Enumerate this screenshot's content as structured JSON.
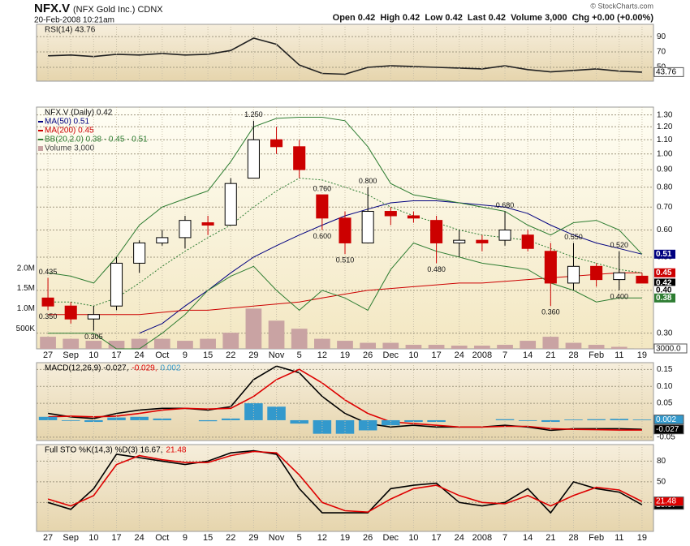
{
  "header": {
    "symbol": "NFX.V",
    "name": "(NFX Gold Inc.) CDNX",
    "datetime": "20-Feb-2008 10:21am",
    "quote": "Open 0.42  High 0.42  Low 0.42  Last 0.42  Volume 3,000  Chg +0.00 (+0.00%)",
    "copyright": "© StockCharts.com"
  },
  "chart_data": [
    {
      "type": "line",
      "title": "RSI(14) 43.76",
      "ylim": [
        32,
        106
      ],
      "yticks": [
        90,
        70,
        50
      ],
      "grid": true,
      "series": [
        {
          "name": null,
          "color": "#222222",
          "values": [
            65,
            66,
            64,
            67,
            66,
            68,
            66,
            67,
            72,
            88,
            80,
            53,
            42,
            41,
            50,
            52,
            51,
            50,
            49,
            48,
            52,
            47,
            44,
            46,
            48,
            45,
            43.76
          ],
          "value_labels": [
            null,
            null,
            null,
            null,
            null,
            null,
            null,
            null,
            null,
            null,
            null,
            null,
            null,
            null,
            null,
            null,
            null,
            null,
            null,
            null,
            null,
            null,
            null,
            null,
            null,
            null,
            "43.76"
          ],
          "tag_color": "#ffffff"
        }
      ]
    },
    {
      "type": "candlestick",
      "title": "NFX.V (Daily) 0.42",
      "log_scale": true,
      "grid": true,
      "categories": [
        "27",
        "Sep",
        "10",
        "17",
        "24",
        "Oct",
        "9",
        "15",
        "22",
        "29",
        "Nov",
        "5",
        "12",
        "19",
        "26",
        "Dec",
        "10",
        "17",
        "24",
        "2008",
        "7",
        "14",
        "21",
        "28",
        "Feb",
        "11",
        "19"
      ],
      "ylim": [
        0.27,
        1.37
      ],
      "yticks": [
        {
          "value": 0.3,
          "label": "0.30"
        },
        {
          "value": 0.4,
          "label": "0.40"
        },
        {
          "value": 0.5,
          "label": "0.50"
        },
        {
          "value": 0.6,
          "label": "0.60"
        },
        {
          "value": 0.7,
          "label": "0.70"
        },
        {
          "value": 0.8,
          "label": "0.80"
        },
        {
          "value": 0.9,
          "label": "0.90"
        },
        {
          "value": 1.0,
          "label": "1.00"
        },
        {
          "value": 1.1,
          "label": "1.10"
        },
        {
          "value": 1.2,
          "label": "1.20"
        },
        {
          "value": 1.3,
          "label": "1.30"
        }
      ],
      "up_color": "#000000",
      "down_color": "#cc0000",
      "open": [
        0.38,
        0.36,
        0.33,
        0.36,
        0.48,
        0.55,
        0.57,
        0.63,
        0.62,
        0.85,
        1.1,
        1.05,
        0.76,
        0.65,
        0.55,
        0.68,
        0.66,
        0.64,
        0.55,
        0.56,
        0.56,
        0.58,
        0.52,
        0.42,
        0.47,
        0.43,
        0.44
      ],
      "high": [
        0.435,
        0.37,
        0.36,
        0.5,
        0.56,
        0.6,
        0.66,
        0.66,
        0.85,
        1.25,
        1.2,
        1.1,
        0.76,
        0.68,
        0.8,
        0.7,
        0.68,
        0.66,
        0.6,
        0.58,
        0.68,
        0.6,
        0.55,
        0.55,
        0.48,
        0.52,
        0.45
      ],
      "low": [
        0.35,
        0.32,
        0.305,
        0.35,
        0.45,
        0.54,
        0.53,
        0.58,
        0.62,
        0.85,
        1.0,
        0.85,
        0.6,
        0.51,
        0.55,
        0.62,
        0.63,
        0.48,
        0.5,
        0.52,
        0.54,
        0.52,
        0.36,
        0.4,
        0.41,
        0.4,
        0.42
      ],
      "close": [
        0.36,
        0.33,
        0.34,
        0.48,
        0.55,
        0.57,
        0.64,
        0.62,
        0.82,
        1.1,
        1.05,
        0.9,
        0.65,
        0.55,
        0.68,
        0.66,
        0.65,
        0.55,
        0.56,
        0.55,
        0.6,
        0.53,
        0.42,
        0.47,
        0.43,
        0.45,
        0.42
      ],
      "high_labels": [
        "0.435",
        null,
        null,
        null,
        null,
        null,
        null,
        null,
        null,
        "1.250",
        null,
        null,
        "0.760",
        null,
        "0.800",
        null,
        null,
        null,
        null,
        null,
        "0.680",
        null,
        null,
        "0.550",
        null,
        "0.520",
        null
      ],
      "low_labels": [
        "0.350",
        null,
        "0.305",
        null,
        null,
        null,
        null,
        null,
        null,
        null,
        null,
        null,
        "0.600",
        "0.510",
        null,
        null,
        null,
        "0.480",
        null,
        null,
        null,
        null,
        "0.360",
        null,
        null,
        "0.400",
        null
      ],
      "series": [
        {
          "name": "MA(50) 0.51",
          "color": "#000080",
          "values": [
            null,
            null,
            null,
            null,
            0.3,
            0.32,
            0.36,
            0.4,
            0.45,
            0.5,
            0.54,
            0.58,
            0.62,
            0.66,
            0.69,
            0.72,
            0.73,
            0.73,
            0.72,
            0.71,
            0.7,
            0.67,
            0.62,
            0.58,
            0.55,
            0.53,
            0.51
          ]
        },
        {
          "name": "MA(200) 0.45",
          "color": "#cc0000",
          "values": [
            0.34,
            0.34,
            0.34,
            0.34,
            0.34,
            0.345,
            0.35,
            0.35,
            0.355,
            0.36,
            0.365,
            0.37,
            0.38,
            0.39,
            0.4,
            0.405,
            0.41,
            0.415,
            0.42,
            0.42,
            0.425,
            0.43,
            0.435,
            0.44,
            0.445,
            0.45,
            0.45
          ]
        },
        {
          "name": "BB(20,2.0) 0.38 - 0.45 - 0.51",
          "color": "#2e7d32",
          "kind": "band",
          "upper": [
            0.45,
            0.44,
            0.42,
            0.5,
            0.62,
            0.7,
            0.74,
            0.78,
            0.95,
            1.2,
            1.27,
            1.28,
            1.28,
            1.25,
            1.05,
            0.82,
            0.76,
            0.74,
            0.72,
            0.7,
            0.68,
            0.62,
            0.58,
            0.63,
            0.64,
            0.6,
            0.51
          ],
          "middle": [
            0.37,
            0.37,
            0.36,
            0.38,
            0.42,
            0.47,
            0.52,
            0.57,
            0.62,
            0.7,
            0.78,
            0.85,
            0.84,
            0.8,
            0.76,
            0.7,
            0.66,
            0.63,
            0.6,
            0.58,
            0.57,
            0.56,
            0.53,
            0.5,
            0.48,
            0.46,
            0.45
          ],
          "lower": [
            0.3,
            0.3,
            0.3,
            0.27,
            0.27,
            0.3,
            0.34,
            0.4,
            0.44,
            0.47,
            0.4,
            0.35,
            0.4,
            0.38,
            0.35,
            0.46,
            0.55,
            0.52,
            0.5,
            0.48,
            0.47,
            0.46,
            0.42,
            0.4,
            0.37,
            0.38,
            0.38
          ]
        }
      ],
      "price_tags": [
        {
          "value": 0.51,
          "label": "0.51",
          "color": "#000080"
        },
        {
          "value": 0.45,
          "label": "0.45",
          "color": "#cc0000"
        },
        {
          "value": 0.42,
          "label": "0.42",
          "color": "#000000"
        },
        {
          "value": 0.4,
          "label": "0.40",
          "color": "#ffffff"
        },
        {
          "value": 0.38,
          "label": "0.38",
          "color": "#2e7d32"
        }
      ],
      "volume": {
        "name": "Volume 3,000",
        "color": "#c9a3a3",
        "ylim": [
          0,
          6000000
        ],
        "yticks": [
          {
            "value": 500000,
            "label": "500K"
          },
          {
            "value": 1000000,
            "label": "1.0M"
          },
          {
            "value": 1500000,
            "label": "1.5M"
          },
          {
            "value": 2000000,
            "label": "2.0M"
          }
        ],
        "values": [
          300000,
          250000,
          200000,
          200000,
          250000,
          250000,
          200000,
          250000,
          400000,
          1000000,
          700000,
          500000,
          250000,
          200000,
          150000,
          150000,
          100000,
          100000,
          80000,
          80000,
          100000,
          200000,
          300000,
          150000,
          100000,
          50000,
          3000
        ],
        "value_labels": [
          null,
          null,
          null,
          null,
          null,
          null,
          null,
          null,
          null,
          null,
          null,
          null,
          null,
          null,
          null,
          null,
          null,
          null,
          null,
          null,
          null,
          null,
          null,
          null,
          null,
          null,
          "3000.0"
        ]
      }
    },
    {
      "type": "line",
      "legend": "inline",
      "ylim": [
        -0.06,
        0.17
      ],
      "yticks": [
        0.15,
        {
          "value": 0.1,
          "label": "0.10"
        },
        0.05,
        -0.05
      ],
      "grid": true,
      "series": [
        {
          "name": "MACD(12,26,9) -0.027,",
          "color": "#000000",
          "values": [
            0.02,
            0.01,
            0.005,
            0.02,
            0.03,
            0.035,
            0.035,
            0.03,
            0.04,
            0.12,
            0.16,
            0.14,
            0.07,
            0.02,
            -0.01,
            -0.02,
            -0.015,
            -0.02,
            -0.02,
            -0.02,
            -0.015,
            -0.02,
            -0.03,
            -0.025,
            -0.025,
            -0.025,
            -0.027
          ],
          "value_labels": [
            null,
            null,
            null,
            null,
            null,
            null,
            null,
            null,
            null,
            null,
            null,
            null,
            null,
            null,
            null,
            null,
            null,
            null,
            null,
            null,
            null,
            null,
            null,
            null,
            null,
            null,
            "-0.027"
          ]
        },
        {
          "name": "-0.029,",
          "color": "#dd0000",
          "values": [
            0.01,
            0.012,
            0.01,
            0.012,
            0.02,
            0.03,
            0.035,
            0.033,
            0.035,
            0.07,
            0.12,
            0.15,
            0.11,
            0.06,
            0.02,
            -0.005,
            -0.01,
            -0.015,
            -0.02,
            -0.02,
            -0.018,
            -0.018,
            -0.025,
            -0.027,
            -0.028,
            -0.029,
            -0.029
          ]
        },
        {
          "name": "0.002",
          "color": "#3399cc",
          "kind": "bar",
          "values": [
            0.01,
            -0.002,
            -0.005,
            0.008,
            0.01,
            0.005,
            0,
            -0.003,
            0.005,
            0.05,
            0.04,
            -0.01,
            -0.04,
            -0.04,
            -0.03,
            -0.015,
            -0.005,
            -0.005,
            0,
            0,
            0.003,
            -0.002,
            -0.005,
            0.002,
            0.003,
            0.004,
            0.002
          ],
          "value_labels": [
            null,
            null,
            null,
            null,
            null,
            null,
            null,
            null,
            null,
            null,
            null,
            null,
            null,
            null,
            null,
            null,
            null,
            null,
            null,
            null,
            null,
            null,
            null,
            null,
            null,
            null,
            "0.002"
          ]
        }
      ]
    },
    {
      "type": "line",
      "legend": "inline",
      "ylim": [
        -22,
        104
      ],
      "yticks": [
        80,
        50,
        20
      ],
      "grid": true,
      "categories": [
        "27",
        "Sep",
        "10",
        "17",
        "24",
        "Oct",
        "9",
        "15",
        "22",
        "29",
        "Nov",
        "5",
        "12",
        "19",
        "26",
        "Dec",
        "10",
        "17",
        "24",
        "2008",
        "7",
        "14",
        "21",
        "28",
        "Feb",
        "11",
        "19"
      ],
      "series": [
        {
          "name": "Full STO %K(14,3) %D(3) 16.67,",
          "color": "#000000",
          "values": [
            20,
            10,
            40,
            90,
            85,
            80,
            75,
            80,
            92,
            95,
            90,
            40,
            5,
            5,
            5,
            40,
            45,
            48,
            20,
            15,
            20,
            40,
            5,
            50,
            40,
            35,
            16.67
          ],
          "value_labels": [
            null,
            null,
            null,
            null,
            null,
            null,
            null,
            null,
            null,
            null,
            null,
            null,
            null,
            null,
            null,
            null,
            null,
            null,
            null,
            null,
            null,
            null,
            null,
            null,
            null,
            null,
            "16.67"
          ]
        },
        {
          "name": "21.48",
          "color": "#dd0000",
          "values": [
            25,
            15,
            30,
            75,
            88,
            82,
            78,
            78,
            88,
            94,
            92,
            60,
            20,
            8,
            6,
            25,
            40,
            45,
            30,
            20,
            18,
            30,
            15,
            30,
            42,
            38,
            21.48
          ],
          "value_labels": [
            null,
            null,
            null,
            null,
            null,
            null,
            null,
            null,
            null,
            null,
            null,
            null,
            null,
            null,
            null,
            null,
            null,
            null,
            null,
            null,
            null,
            null,
            null,
            null,
            null,
            null,
            "21.48"
          ]
        }
      ]
    }
  ]
}
